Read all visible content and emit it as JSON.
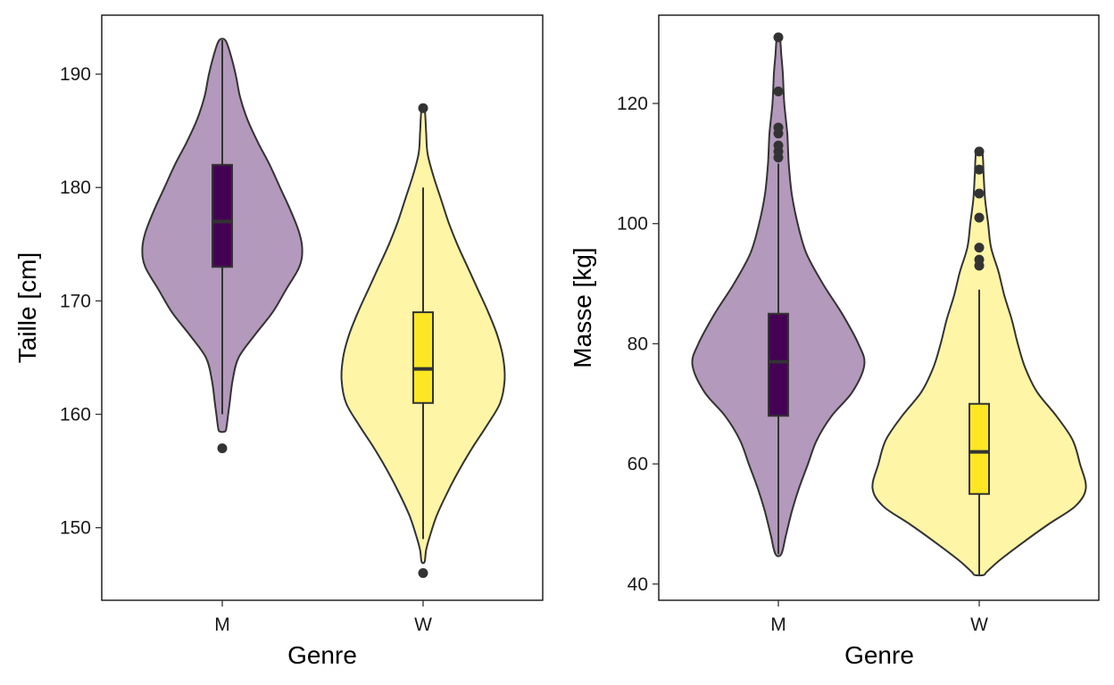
{
  "chart_data": [
    {
      "type": "violin",
      "xlabel": "Genre",
      "ylabel": "Taille  [cm]",
      "ylim": [
        143.6,
        195.2
      ],
      "yticks": [
        150,
        160,
        170,
        180,
        190
      ],
      "categories": [
        "M",
        "W"
      ],
      "groups": [
        {
          "name": "M",
          "fill": "#b399bb",
          "box_fill": "#440154",
          "box": {
            "q1": 173,
            "median": 177,
            "q3": 182,
            "whisker_low": 160,
            "whisker_high": 193
          },
          "outliers": [
            157
          ],
          "density": [
            [
              193,
              0.02
            ],
            [
              192,
              0.05
            ],
            [
              190,
              0.09
            ],
            [
              188,
              0.12
            ],
            [
              186,
              0.17
            ],
            [
              184,
              0.24
            ],
            [
              182,
              0.32
            ],
            [
              180,
              0.39
            ],
            [
              178,
              0.46
            ],
            [
              176,
              0.52
            ],
            [
              174.5,
              0.54
            ],
            [
              173,
              0.52
            ],
            [
              171,
              0.43
            ],
            [
              169,
              0.34
            ],
            [
              167,
              0.22
            ],
            [
              165,
              0.11
            ],
            [
              163,
              0.07
            ],
            [
              161,
              0.05
            ],
            [
              160,
              0.04
            ],
            [
              159,
              0.03
            ],
            [
              158.5,
              0.02
            ]
          ]
        },
        {
          "name": "W",
          "fill": "#fef5a6",
          "box_fill": "#fde725",
          "box": {
            "q1": 161,
            "median": 164,
            "q3": 169,
            "whisker_low": 149,
            "whisker_high": 180
          },
          "outliers": [
            146,
            187
          ],
          "density": [
            [
              187,
              0.01
            ],
            [
              185,
              0.02
            ],
            [
              183,
              0.03
            ],
            [
              181,
              0.07
            ],
            [
              179,
              0.12
            ],
            [
              177,
              0.17
            ],
            [
              175,
              0.23
            ],
            [
              173,
              0.3
            ],
            [
              171,
              0.37
            ],
            [
              169,
              0.44
            ],
            [
              167,
              0.5
            ],
            [
              165,
              0.54
            ],
            [
              163,
              0.55
            ],
            [
              161,
              0.52
            ],
            [
              159,
              0.43
            ],
            [
              157,
              0.33
            ],
            [
              155,
              0.24
            ],
            [
              153,
              0.16
            ],
            [
              151,
              0.09
            ],
            [
              149,
              0.04
            ],
            [
              148,
              0.02
            ],
            [
              147,
              0.01
            ]
          ]
        }
      ]
    },
    {
      "type": "violin",
      "xlabel": "Genre",
      "ylabel": "Masse  [kg]",
      "ylim": [
        37.3,
        134.7
      ],
      "yticks": [
        40,
        60,
        80,
        100,
        120
      ],
      "categories": [
        "M",
        "W"
      ],
      "groups": [
        {
          "name": "M",
          "fill": "#b399bb",
          "box_fill": "#440154",
          "box": {
            "q1": 68,
            "median": 77,
            "q3": 85,
            "whisker_low": 45,
            "whisker_high": 110
          },
          "outliers": [
            111,
            112,
            113,
            115,
            116,
            122,
            131
          ],
          "density": [
            [
              131,
              0.01
            ],
            [
              128,
              0.02
            ],
            [
              125,
              0.03
            ],
            [
              120,
              0.04
            ],
            [
              115,
              0.06
            ],
            [
              110,
              0.07
            ],
            [
              105,
              0.09
            ],
            [
              100,
              0.13
            ],
            [
              95,
              0.19
            ],
            [
              90,
              0.3
            ],
            [
              85,
              0.43
            ],
            [
              80,
              0.54
            ],
            [
              76.5,
              0.58
            ],
            [
              72,
              0.5
            ],
            [
              68,
              0.36
            ],
            [
              64,
              0.26
            ],
            [
              60,
              0.2
            ],
            [
              56,
              0.14
            ],
            [
              52,
              0.09
            ],
            [
              48,
              0.05
            ],
            [
              45,
              0.02
            ]
          ]
        },
        {
          "name": "W",
          "fill": "#fef5a6",
          "box_fill": "#fde725",
          "box": {
            "q1": 55,
            "median": 62,
            "q3": 70,
            "whisker_low": 41.5,
            "whisker_high": 89
          },
          "outliers": [
            93,
            94,
            96,
            101,
            105,
            109,
            112
          ],
          "density": [
            [
              112,
              0.02
            ],
            [
              108,
              0.03
            ],
            [
              104,
              0.04
            ],
            [
              100,
              0.06
            ],
            [
              96,
              0.08
            ],
            [
              92,
              0.13
            ],
            [
              88,
              0.17
            ],
            [
              84,
              0.22
            ],
            [
              80,
              0.26
            ],
            [
              76,
              0.31
            ],
            [
              72,
              0.39
            ],
            [
              68,
              0.52
            ],
            [
              64,
              0.63
            ],
            [
              60,
              0.68
            ],
            [
              56,
              0.72
            ],
            [
              53,
              0.65
            ],
            [
              50,
              0.47
            ],
            [
              47,
              0.3
            ],
            [
              44,
              0.14
            ],
            [
              42,
              0.05
            ],
            [
              41.5,
              0.03
            ]
          ]
        }
      ]
    }
  ]
}
